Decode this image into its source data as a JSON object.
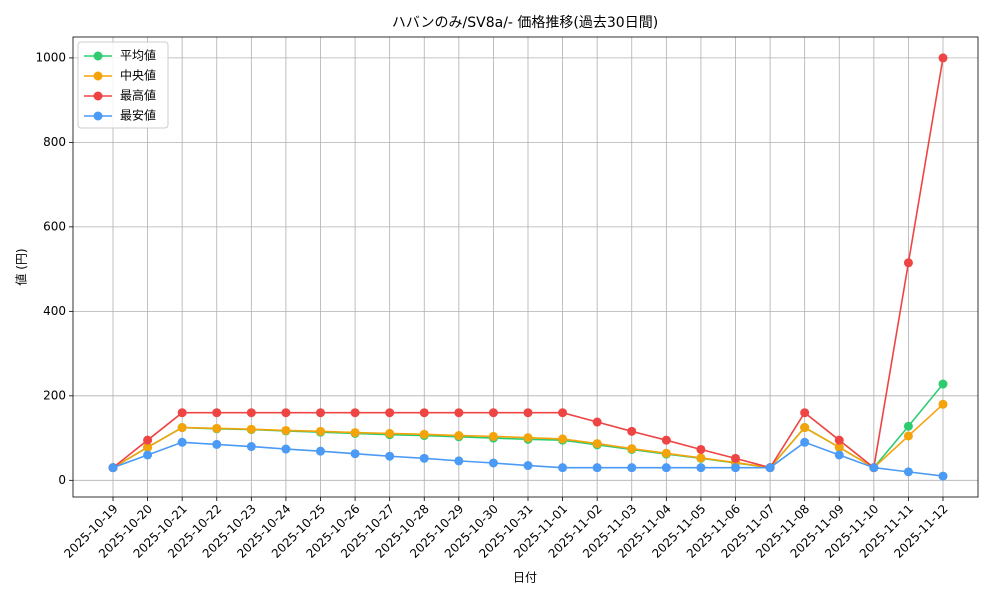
{
  "chart_data": {
    "type": "line",
    "title": "ハバンのみ/SV8a/- 価格推移(過去30日間)",
    "x_label": "日付",
    "y_label": "値 (円)",
    "categories": [
      "2025-10-19",
      "2025-10-20",
      "2025-10-21",
      "2025-10-22",
      "2025-10-23",
      "2025-10-24",
      "2025-10-25",
      "2025-10-26",
      "2025-10-27",
      "2025-10-28",
      "2025-10-29",
      "2025-10-30",
      "2025-10-31",
      "2025-11-01",
      "2025-11-02",
      "2025-11-03",
      "2025-11-04",
      "2025-11-05",
      "2025-11-06",
      "2025-11-07",
      "2025-11-08",
      "2025-11-09",
      "2025-11-10",
      "2025-11-11",
      "2025-11-12"
    ],
    "series": [
      {
        "name": "平均値",
        "color": "#2ecc71",
        "values": [
          30,
          78,
          125,
          122,
          120,
          117,
          114,
          111,
          108,
          106,
          103,
          100,
          97,
          95,
          84,
          73,
          62,
          52,
          41,
          30,
          125,
          78,
          30,
          128,
          228
        ]
      },
      {
        "name": "中央値",
        "color": "#f5a30a",
        "values": [
          30,
          78,
          125,
          123,
          121,
          118,
          116,
          113,
          111,
          109,
          106,
          104,
          101,
          98,
          87,
          75,
          64,
          53,
          42,
          30,
          125,
          78,
          30,
          105,
          180
        ]
      },
      {
        "name": "最高値",
        "color": "#ef4444",
        "values": [
          30,
          95,
          160,
          160,
          160,
          160,
          160,
          160,
          160,
          160,
          160,
          160,
          160,
          160,
          138,
          116,
          95,
          73,
          52,
          30,
          160,
          95,
          30,
          515,
          1000
        ]
      },
      {
        "name": "最安値",
        "color": "#4b9af5",
        "values": [
          30,
          60,
          90,
          85,
          80,
          74,
          69,
          63,
          57,
          52,
          46,
          41,
          35,
          30,
          30,
          30,
          30,
          30,
          30,
          30,
          90,
          60,
          30,
          20,
          10
        ]
      }
    ],
    "ylim": [
      -39.5,
      1049.5
    ],
    "yticks": [
      0,
      200,
      400,
      600,
      800,
      1000
    ],
    "grid": true,
    "legend": "upper left"
  }
}
